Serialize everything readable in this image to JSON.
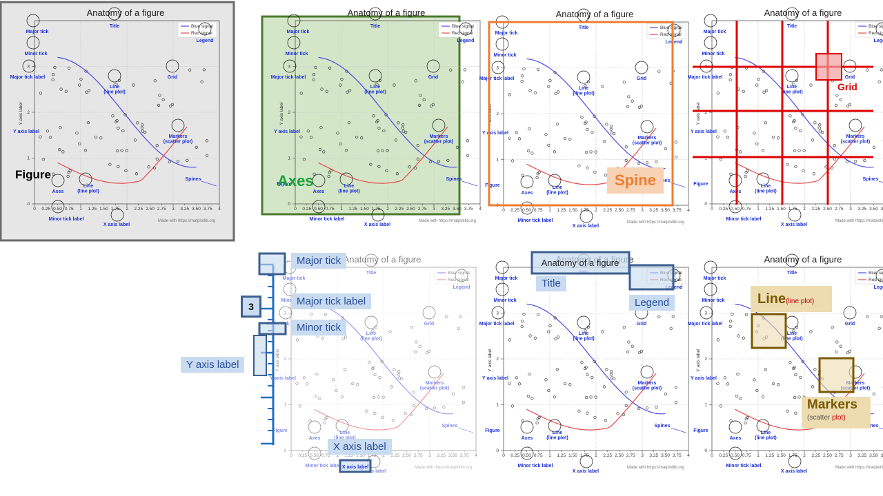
{
  "title": "Anatomy of a figure",
  "annotations": {
    "major_tick": "Major tick",
    "minor_tick": "Minor tick",
    "major_tick_label": "Major tick label",
    "minor_tick_label": "Minor tick label",
    "y_axis_label": "Y axis label",
    "x_axis_label": "X axis label",
    "grid": "Grid",
    "legend": "Legend",
    "line": "Line\n(line plot)",
    "markers": "Markers\n(scatter plot)",
    "spines": "Spines",
    "figure": "Figure",
    "axes": "Axes",
    "title_lbl": "Title"
  },
  "legend": {
    "blue": "Blue signal",
    "red": "Red signal"
  },
  "credit": "Made with https://matplotlib.org",
  "axis_text": {
    "y": "Y axis label",
    "x": "X axis label",
    "tick3": "3"
  },
  "x_ticks": [
    "0",
    "0.25",
    "0.50",
    "0.75",
    "1",
    "1.25",
    "1.50",
    "1.75",
    "2",
    "2.25",
    "2.50",
    "2.75",
    "3",
    "3.25",
    "3.50",
    "3.75",
    "4"
  ],
  "callouts": {
    "figure": "Figure",
    "axes": "Axes",
    "spine": "Spine",
    "grid": "Grid",
    "major_tick": "Major tick",
    "major_tick_label": "Major tick label",
    "minor_tick": "Minor tick",
    "y_axis_label": "Y axis label",
    "x_axis_label": "X axis label",
    "tick_three": "3",
    "title": "Title",
    "legend": "Legend",
    "title_box": "Anatomy of a figure",
    "line_big": "Line",
    "line_sub": "(line plot)",
    "markers_big": "Markers",
    "markers_sub_a": "(scatter ",
    "markers_sub_b": "plot)"
  },
  "colors": {
    "blue_line": "#4a4ae6",
    "red_line": "#e84a4a",
    "figure_bg": "#e6e6e6",
    "axes_bg": "#d4e6c8",
    "axes_border": "#4c7a30",
    "spine_border": "#ed7d31",
    "grid_red": "#e00000",
    "tag_blue": "#c8dbf0",
    "tag_gold": "#ecdcb0",
    "gold_border": "#7a5a00"
  }
}
